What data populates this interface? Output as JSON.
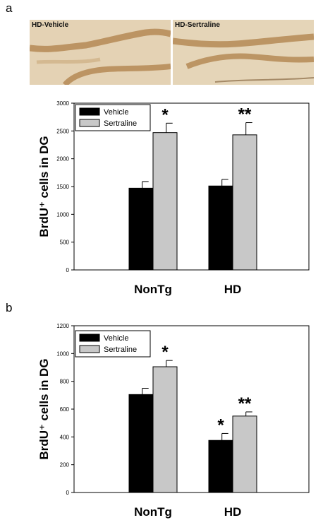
{
  "panels": [
    {
      "label": "a",
      "images": [
        {
          "caption": "HD-Vehicle"
        },
        {
          "caption": "HD-Sertraline"
        }
      ]
    },
    {
      "label": "b"
    }
  ],
  "colors": {
    "vehicle": "#000000",
    "sertraline": "#c8c8c8",
    "tissue": "#e6d3b4",
    "stain": "#b58a55"
  },
  "chart_data": [
    {
      "type": "bar",
      "ylabel": "BrdU⁺ cells in DG",
      "ylim": [
        0,
        3000
      ],
      "yticks": [
        0,
        500,
        1000,
        1500,
        2000,
        2500,
        3000
      ],
      "categories": [
        "NonTg",
        "HD"
      ],
      "series": [
        {
          "name": "Vehicle",
          "values": [
            1470,
            1510
          ],
          "errors": [
            120,
            120
          ]
        },
        {
          "name": "Sertraline",
          "values": [
            2470,
            2430
          ],
          "errors": [
            170,
            220
          ]
        }
      ],
      "annotations": [
        {
          "category": "NonTg",
          "series": "Sertraline",
          "text": "*"
        },
        {
          "category": "HD",
          "series": "Sertraline",
          "text": "**"
        }
      ],
      "legend": "top-left",
      "grid": false
    },
    {
      "type": "bar",
      "ylabel": "BrdU⁺ cells in DG",
      "ylim": [
        0,
        1200
      ],
      "yticks": [
        0,
        200,
        400,
        600,
        800,
        1000,
        1200
      ],
      "categories": [
        "NonTg",
        "HD"
      ],
      "series": [
        {
          "name": "Vehicle",
          "values": [
            705,
            375
          ],
          "errors": [
            45,
            50
          ]
        },
        {
          "name": "Sertraline",
          "values": [
            905,
            550
          ],
          "errors": [
            45,
            30
          ]
        }
      ],
      "annotations": [
        {
          "category": "NonTg",
          "series": "Sertraline",
          "text": "*"
        },
        {
          "category": "HD",
          "series": "Vehicle",
          "text": "*"
        },
        {
          "category": "HD",
          "series": "Sertraline",
          "text": "**"
        }
      ],
      "legend": "top-left",
      "grid": false
    }
  ]
}
